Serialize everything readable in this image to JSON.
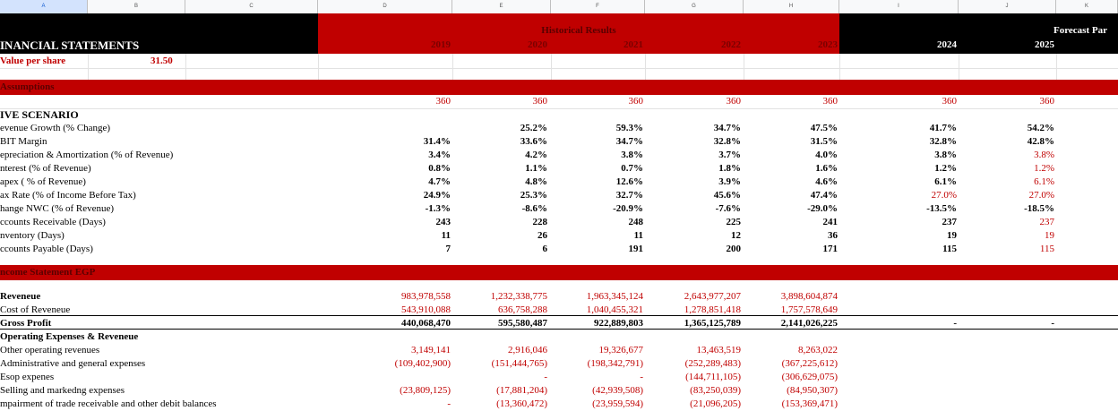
{
  "column_headers": [
    "A",
    "B",
    "C",
    "D",
    "E",
    "F",
    "G",
    "H",
    "I",
    "J",
    "K"
  ],
  "header": {
    "title": "INANCIAL STATEMENTS",
    "historical_label": "Historical Results",
    "forecast_label": "Forecast Par",
    "years_hist": [
      "2019",
      "2020",
      "2021",
      "2022",
      "2023"
    ],
    "years_fc": [
      "2024",
      "2025"
    ]
  },
  "value_per_share": {
    "label": "Value per share",
    "value": "31.50"
  },
  "assumptions": {
    "title": "Assumptions",
    "days": [
      "360",
      "360",
      "360",
      "360",
      "360",
      "360",
      "360"
    ]
  },
  "scenario_title": "IVE SCENARIO",
  "assumption_rows": [
    {
      "label": "evenue Growth (% Change)",
      "values": [
        "",
        "25.2%",
        "59.3%",
        "34.7%",
        "47.5%",
        "41.7%",
        "54.2%"
      ]
    },
    {
      "label": "BIT Margin",
      "values": [
        "31.4%",
        "33.6%",
        "34.7%",
        "32.8%",
        "31.5%",
        "32.8%",
        "42.8%"
      ]
    },
    {
      "label": "epreciation & Amortization (% of Revenue)",
      "values": [
        "3.4%",
        "4.2%",
        "3.8%",
        "3.7%",
        "4.0%",
        "3.8%",
        "3.8%"
      ]
    },
    {
      "label": "nterest (% of Revenue)",
      "values": [
        "0.8%",
        "1.1%",
        "0.7%",
        "1.8%",
        "1.6%",
        "1.2%",
        "1.2%"
      ]
    },
    {
      "label": "apex ( % of Revenue)",
      "values": [
        "4.7%",
        "4.8%",
        "12.6%",
        "3.9%",
        "4.6%",
        "6.1%",
        "6.1%"
      ]
    },
    {
      "label": "ax Rate (% of Income Before Tax)",
      "values": [
        "24.9%",
        "25.3%",
        "32.7%",
        "45.6%",
        "47.4%",
        "27.0%",
        "27.0%"
      ]
    },
    {
      "label": "hange NWC (% of Revenue)",
      "values": [
        "-1.3%",
        "-8.6%",
        "-20.9%",
        "-7.6%",
        "-29.0%",
        "-13.5%",
        "-18.5%"
      ]
    },
    {
      "label": "ccounts Receivable (Days)",
      "values": [
        "243",
        "228",
        "248",
        "225",
        "241",
        "237",
        "237"
      ]
    },
    {
      "label": "nventory (Days)",
      "values": [
        "11",
        "26",
        "11",
        "12",
        "36",
        "19",
        "19"
      ]
    },
    {
      "label": "ccounts Payable (Days)",
      "values": [
        "7",
        "6",
        "191",
        "200",
        "171",
        "115",
        "115"
      ]
    }
  ],
  "income_statement": {
    "title": "ncome Statement EGP",
    "rows": [
      {
        "label": "Reveneue",
        "values": [
          "983,978,558",
          "1,232,338,775",
          "1,963,345,124",
          "2,643,977,207",
          "3,898,604,874",
          "",
          ""
        ]
      },
      {
        "label": "Cost of Reveneue",
        "values": [
          "543,910,088",
          "636,758,288",
          "1,040,455,321",
          "1,278,851,418",
          "1,757,578,649",
          "",
          ""
        ]
      },
      {
        "label": "Gross Profit",
        "values": [
          "440,068,470",
          "595,580,487",
          "922,889,803",
          "1,365,125,789",
          "2,141,026,225",
          "-",
          "-"
        ]
      },
      {
        "label": "Operating Expenses & Reveneue",
        "values": [
          "",
          "",
          "",
          "",
          "",
          "",
          ""
        ]
      },
      {
        "label": "Other operating revenues",
        "values": [
          "3,149,141",
          "2,916,046",
          "19,326,677",
          "13,463,519",
          "8,263,022",
          "",
          ""
        ]
      },
      {
        "label": "Administrative and general expenses",
        "values": [
          "(109,402,900)",
          "(151,444,765)",
          "(198,342,791)",
          "(252,289,483)",
          "(367,225,612)",
          "",
          ""
        ]
      },
      {
        "label": "Esop expenes",
        "values": [
          "",
          "-",
          "-",
          "(144,711,105)",
          "(306,629,075)",
          "",
          ""
        ]
      },
      {
        "label": "Selling and markedng expenses",
        "values": [
          "(23,809,125)",
          "(17,881,204)",
          "(42,939,508)",
          "(83,250,039)",
          "(84,950,307)",
          "",
          ""
        ]
      },
      {
        "label": "mpairment of trade receivable and other debit balances",
        "values": [
          "-",
          "(13,360,472)",
          "(23,959,594)",
          "(21,096,205)",
          "(153,369,471)",
          "",
          ""
        ]
      }
    ]
  },
  "colors": {
    "red": "#c00000",
    "black": "#000000",
    "grid": "#e2e2e2"
  }
}
